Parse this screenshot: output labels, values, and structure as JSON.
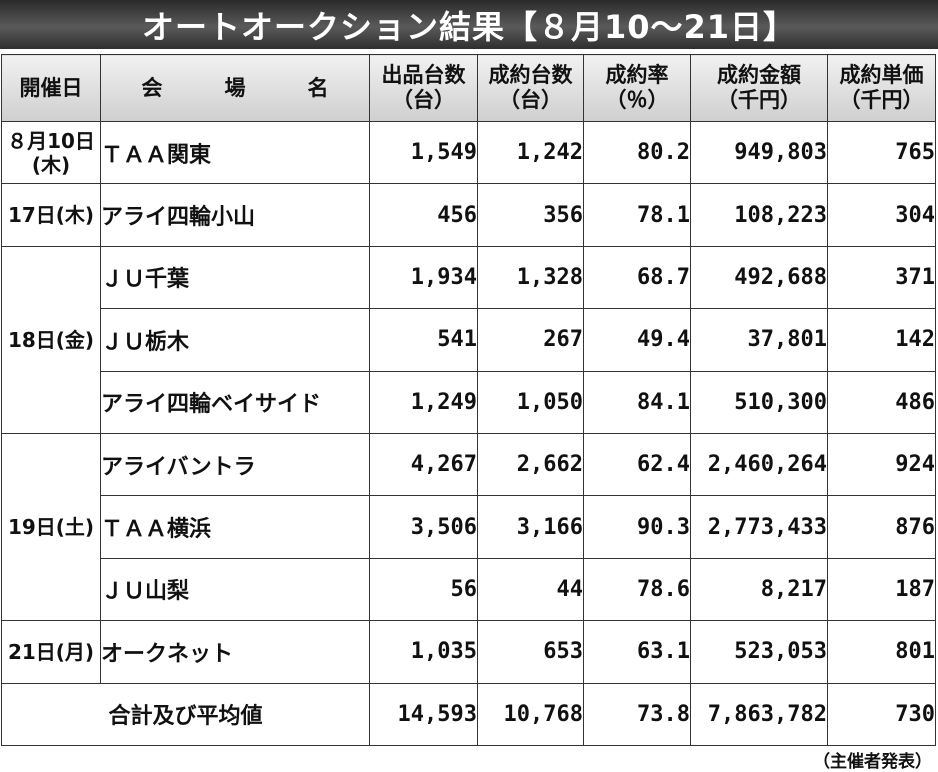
{
  "title": "オートオークション結果【８月10～21日】",
  "headers": {
    "date": "開催日",
    "venue_chars": [
      "会",
      "場",
      "名"
    ],
    "listed": [
      "出品台数",
      "（台）"
    ],
    "contracted": [
      "成約台数",
      "（台）"
    ],
    "rate": [
      "成約率",
      "（％）"
    ],
    "amount": [
      "成約金額",
      "（千円）"
    ],
    "unit_price": [
      "成約単価",
      "（千円）"
    ]
  },
  "groups": [
    {
      "date": [
        "８月10日",
        "(木)"
      ],
      "rows": [
        {
          "venue": "ＴＡＡ関東",
          "listed": "1,549",
          "contracted": "1,242",
          "rate": "80.2",
          "amount": "949,803",
          "unit_price": "765"
        }
      ]
    },
    {
      "date": [
        "17日(木)"
      ],
      "rows": [
        {
          "venue": "アライ四輪小山",
          "listed": "456",
          "contracted": "356",
          "rate": "78.1",
          "amount": "108,223",
          "unit_price": "304"
        }
      ]
    },
    {
      "date": [
        "18日(金)"
      ],
      "rows": [
        {
          "venue": "ＪＵ千葉",
          "listed": "1,934",
          "contracted": "1,328",
          "rate": "68.7",
          "amount": "492,688",
          "unit_price": "371"
        },
        {
          "venue": "ＪＵ栃木",
          "listed": "541",
          "contracted": "267",
          "rate": "49.4",
          "amount": "37,801",
          "unit_price": "142"
        },
        {
          "venue": "アライ四輪ベイサイド",
          "listed": "1,249",
          "contracted": "1,050",
          "rate": "84.1",
          "amount": "510,300",
          "unit_price": "486"
        }
      ]
    },
    {
      "date": [
        "19日(土)"
      ],
      "rows": [
        {
          "venue": "アライバントラ",
          "listed": "4,267",
          "contracted": "2,662",
          "rate": "62.4",
          "amount": "2,460,264",
          "unit_price": "924"
        },
        {
          "venue": "ＴＡＡ横浜",
          "listed": "3,506",
          "contracted": "3,166",
          "rate": "90.3",
          "amount": "2,773,433",
          "unit_price": "876"
        },
        {
          "venue": "ＪＵ山梨",
          "listed": "56",
          "contracted": "44",
          "rate": "78.6",
          "amount": "8,217",
          "unit_price": "187"
        }
      ]
    },
    {
      "date": [
        "21日(月)"
      ],
      "rows": [
        {
          "venue": "オークネット",
          "listed": "1,035",
          "contracted": "653",
          "rate": "63.1",
          "amount": "523,053",
          "unit_price": "801"
        }
      ]
    }
  ],
  "total": {
    "label": "合計及び平均値",
    "listed": "14,593",
    "contracted": "10,768",
    "rate": "73.8",
    "amount": "7,863,782",
    "unit_price": "730"
  },
  "source": "（主催者発表）"
}
